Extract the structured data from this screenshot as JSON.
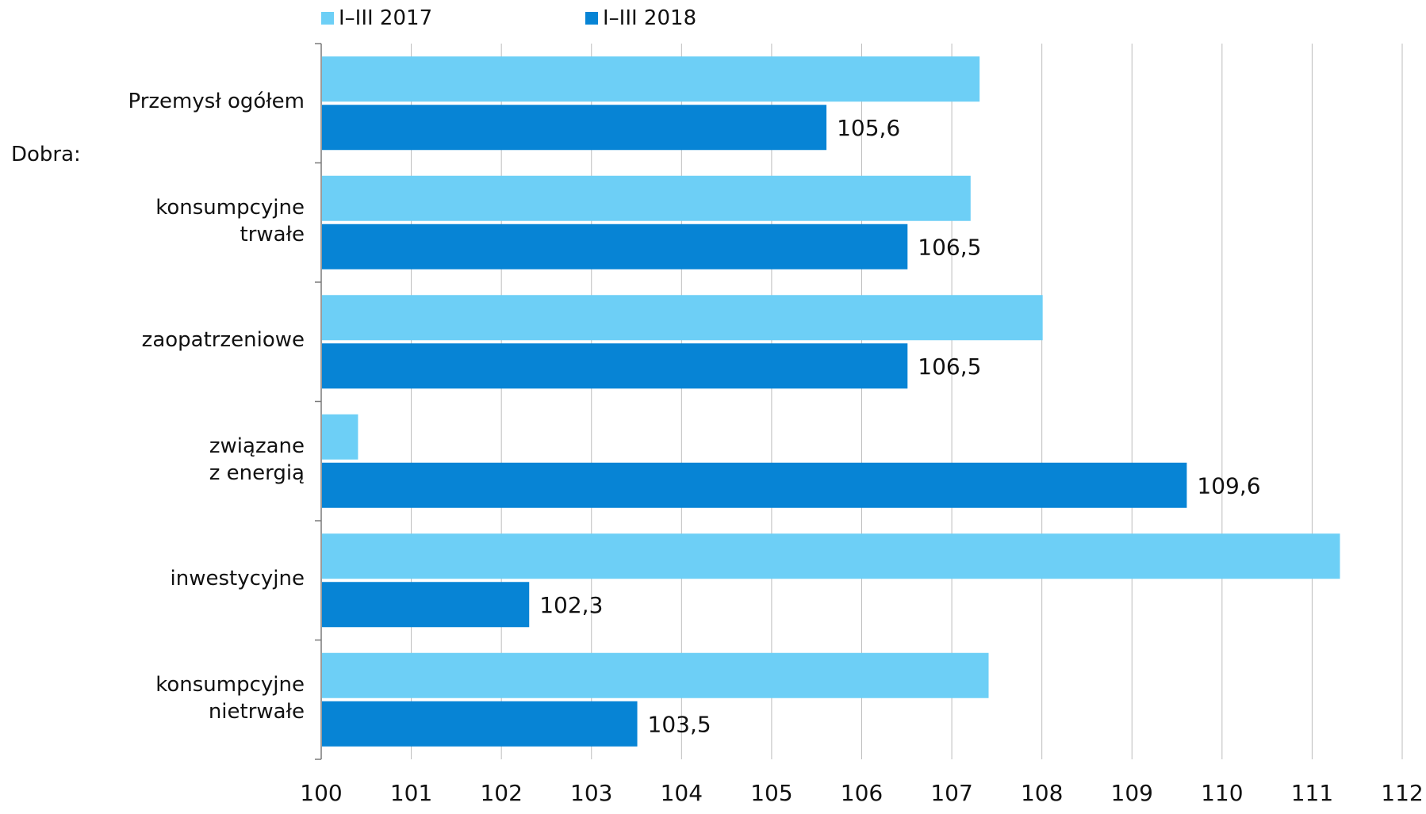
{
  "chart_data": {
    "type": "bar",
    "orientation": "horizontal",
    "group_label": "Dobra:",
    "categories": [
      [
        "Przemysł ogółem"
      ],
      [
        "konsumpcyjne",
        "trwałe"
      ],
      [
        "zaopatrzeniowe"
      ],
      [
        "związane",
        "z energią"
      ],
      [
        "inwestycyjne"
      ],
      [
        "konsumpcyjne",
        "nietrwałe"
      ]
    ],
    "series": [
      {
        "name": "I–III 2017",
        "color": "#6dcff6",
        "values": [
          107.3,
          107.2,
          108.0,
          100.4,
          111.3,
          107.4
        ],
        "labels": [
          "",
          "",
          "",
          "",
          "",
          ""
        ]
      },
      {
        "name": "I–III 2018",
        "color": "#0784d5",
        "values": [
          105.6,
          106.5,
          106.5,
          109.6,
          102.3,
          103.5
        ],
        "labels": [
          "105,6",
          "106,5",
          "106,5",
          "109,6",
          "102,3",
          "103,5"
        ]
      }
    ],
    "xlim": [
      100,
      112
    ],
    "xticks": [
      "100",
      "101",
      "102",
      "103",
      "104",
      "105",
      "106",
      "107",
      "108",
      "109",
      "110",
      "111",
      "112"
    ],
    "grid": true,
    "legend": "top"
  }
}
